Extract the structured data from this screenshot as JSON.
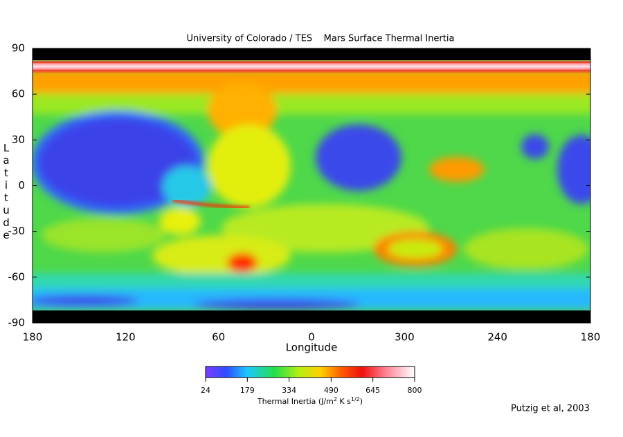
{
  "title": "University of Colorado / TES    Mars Surface Thermal Inertia",
  "map": {
    "lat_range": [
      -90,
      90
    ],
    "lat_ticks": [
      90,
      60,
      30,
      0,
      -30,
      -60,
      -90
    ],
    "lon_ticks": [
      "180",
      "120",
      "60",
      "0",
      "300",
      "240",
      "180"
    ],
    "y_label": "Latitude",
    "x_label": "Longitude"
  },
  "colorbar": {
    "range": [
      24,
      800
    ],
    "ticks": [
      24,
      179,
      334,
      490,
      645,
      800
    ],
    "label": [
      "Thermal Inertia (J/m",
      "2",
      " K s",
      "1/2",
      ")"
    ]
  },
  "credit": "Putzig et al, 2003"
}
